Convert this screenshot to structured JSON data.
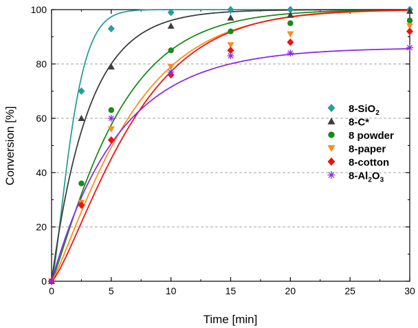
{
  "chart_data": {
    "type": "scatter",
    "title": "",
    "xlabel": "Time [min]",
    "ylabel": "Conversion [%]",
    "xlim": [
      0,
      30
    ],
    "ylim": [
      0,
      100
    ],
    "x_ticks": [
      "0",
      "5",
      "10",
      "15",
      "20",
      "25",
      "30"
    ],
    "y_ticks": [
      "0",
      "20",
      "40",
      "60",
      "80",
      "100"
    ],
    "grid": "horizontal dashed",
    "legend_position": "center-right",
    "series": [
      {
        "name": "8-SiO2",
        "legend_parts": [
          "8-SiO",
          "2",
          ""
        ],
        "marker": "diamond",
        "color": "#2a9d97",
        "x": [
          0,
          2.5,
          5,
          10,
          15,
          20,
          30
        ],
        "values": [
          0,
          70,
          93,
          99,
          100,
          100,
          100
        ],
        "fit": {
          "model": "sigmoidal",
          "k": 0.5085,
          "n": 1.38
        }
      },
      {
        "name": "8-C*",
        "legend_parts": [
          "8-C*",
          "",
          ""
        ],
        "marker": "triangle-up",
        "color": "#3d3d3d",
        "x": [
          0,
          2.5,
          5,
          10,
          15,
          20,
          30
        ],
        "values": [
          0,
          60,
          79,
          94,
          97,
          98,
          99.5
        ],
        "fit": {
          "model": "sigmoidal",
          "k": 0.322,
          "n": 1.0
        }
      },
      {
        "name": "8 powder",
        "legend_parts": [
          "8 powder",
          "",
          ""
        ],
        "marker": "circle",
        "color": "#1a8a1a",
        "x": [
          0,
          2.5,
          5,
          10,
          15,
          20,
          30
        ],
        "values": [
          0,
          36,
          63,
          85,
          92,
          95,
          96
        ],
        "fit": {
          "model": "sigmoidal",
          "k": 0.175,
          "n": 1.15
        }
      },
      {
        "name": "8-paper",
        "legend_parts": [
          "8-paper",
          "",
          ""
        ],
        "marker": "triangle-down",
        "color": "#ff8c1a",
        "x": [
          0,
          2.5,
          5,
          10,
          15,
          20,
          30
        ],
        "values": [
          0,
          29,
          56,
          79,
          87,
          91,
          94
        ],
        "fit": {
          "model": "sigmoidal",
          "k": 0.145,
          "n": 1.2
        }
      },
      {
        "name": "8-cotton",
        "legend_parts": [
          "8-cotton",
          "",
          ""
        ],
        "marker": "diamond",
        "color": "#ee1111",
        "x": [
          0,
          2.5,
          5,
          10,
          15,
          20,
          30
        ],
        "values": [
          0,
          28,
          52,
          76,
          85,
          88,
          92
        ],
        "fit": {
          "model": "sigmoidal",
          "k": 0.135,
          "n": 1.3
        }
      },
      {
        "name": "8-Al2O3",
        "legend_parts": [
          "8-Al",
          "2",
          "O"
        ],
        "legend_parts_tail": [
          "3"
        ],
        "marker": "asterisk",
        "color": "#8c2be2",
        "x": [
          0,
          5,
          10,
          15,
          20,
          30
        ],
        "values": [
          0,
          60,
          77,
          83,
          84,
          86
        ],
        "fit": {
          "model": "asymptotic",
          "a": 86,
          "k": 0.178,
          "n": 1.0
        }
      }
    ]
  }
}
